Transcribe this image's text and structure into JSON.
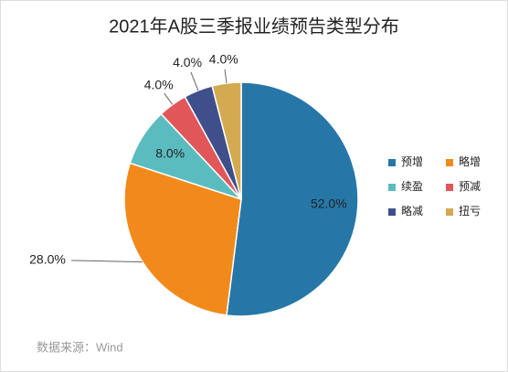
{
  "chart_data": {
    "type": "pie",
    "title": "2021年A股三季报业绩预告类型分布",
    "categories": [
      "预增",
      "略增",
      "续盈",
      "预减",
      "略减",
      "扭亏"
    ],
    "values": [
      52,
      28,
      8,
      4,
      4,
      4
    ],
    "value_labels": [
      "52.0%",
      "28.0%",
      "8.0%",
      "4.0%",
      "4.0%",
      "4.0%"
    ],
    "colors": [
      "#2677a8",
      "#f28a1b",
      "#5bbcc0",
      "#e15759",
      "#3f4f8c",
      "#d3aa50"
    ],
    "legend": "right",
    "source": "数据来源：Wind"
  }
}
